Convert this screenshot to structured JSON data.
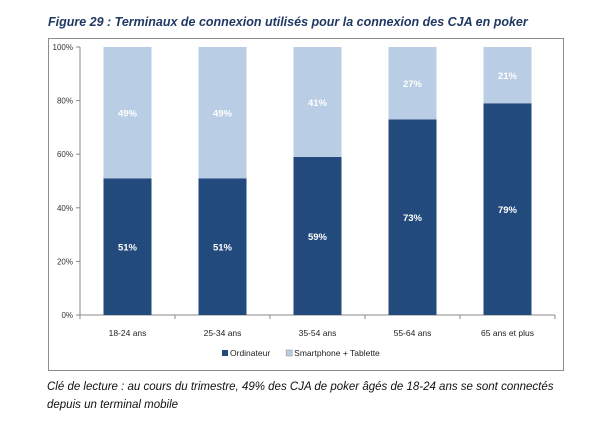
{
  "title": "Figure 29 : Terminaux de connexion utilisés pour la connexion des CJA en poker",
  "caption": "Clé de lecture : au cours du trimestre, 49% des CJA de poker âgés de 18-24 ans se sont connectés depuis un terminal mobile",
  "chart_data": {
    "type": "bar",
    "stacked": true,
    "categories": [
      "18-24 ans",
      "25-34 ans",
      "35-54 ans",
      "55-64 ans",
      "65 ans et plus"
    ],
    "series": [
      {
        "name": "Ordinateur",
        "values": [
          51,
          51,
          59,
          73,
          79
        ],
        "color": "#234a7d",
        "labels": [
          "51%",
          "51%",
          "59%",
          "73%",
          "79%"
        ]
      },
      {
        "name": "Smartphone + Tablette",
        "values": [
          49,
          49,
          41,
          27,
          21
        ],
        "color": "#b9cde5",
        "labels": [
          "49%",
          "49%",
          "41%",
          "27%",
          "21%"
        ]
      }
    ],
    "ylim": [
      0,
      100
    ],
    "yticks": [
      "0%",
      "20%",
      "40%",
      "60%",
      "80%",
      "100%"
    ],
    "grid": false,
    "legend": "bottom"
  }
}
